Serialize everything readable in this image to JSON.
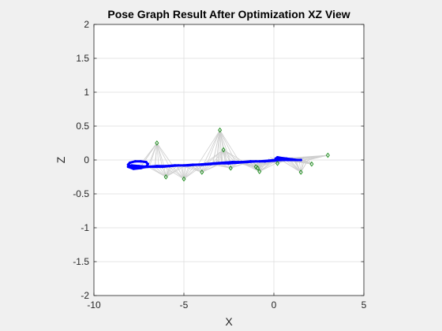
{
  "chart_data": {
    "type": "scatter",
    "title": "Pose Graph Result After Optimization XZ View",
    "xlabel": "X",
    "ylabel": "Z",
    "xlim": [
      -10,
      5
    ],
    "ylim": [
      -2,
      2
    ],
    "xticks": [
      -10,
      -5,
      0,
      5
    ],
    "yticks": [
      -2,
      -1.5,
      -1,
      -0.5,
      0,
      0.5,
      1,
      1.5,
      2
    ],
    "xtick_labels": [
      "-10",
      "-5",
      "0",
      "5"
    ],
    "ytick_labels": [
      "-2",
      "-1.5",
      "-1",
      "-0.5",
      "0",
      "0.5",
      "1",
      "1.5",
      "2"
    ],
    "grid": true,
    "colors": {
      "trajectory": "#0000ff",
      "landmark": "#1a8c1a",
      "edge": "#cfcfcf",
      "axes_bg": "#ffffff",
      "figure_bg": "#f0f0f0"
    },
    "series": [
      {
        "kind": "trajectory",
        "x": [
          1.5,
          1.3,
          1.0,
          0.7,
          0.4,
          0.2,
          0.1,
          0.3,
          0.1,
          -0.3,
          -0.8,
          -1.3,
          -1.8,
          -2.3,
          -2.8,
          -3.3,
          -3.8,
          -4.3,
          -4.8,
          -5.3,
          -5.8,
          -6.2,
          -6.6,
          -7.0,
          -7.3,
          -7.6,
          -7.9,
          -8.1,
          -8.0,
          -7.7,
          -7.4,
          -7.1,
          -7.0,
          -7.1,
          -7.4,
          -7.8,
          -8.1,
          -7.9,
          -7.5,
          -7.0,
          -6.5,
          -6.0,
          -5.5,
          -5.0,
          -4.5,
          -4.0,
          -3.5,
          -3.0,
          -2.5,
          -2.0,
          -1.5,
          -1.0,
          -0.5,
          0.0,
          0.4,
          0.8,
          1.2,
          1.5
        ],
        "y": [
          0.0,
          0.0,
          0.01,
          0.02,
          0.03,
          0.04,
          0.02,
          0.03,
          0.0,
          -0.01,
          -0.02,
          -0.02,
          -0.03,
          -0.03,
          -0.04,
          -0.05,
          -0.06,
          -0.07,
          -0.08,
          -0.08,
          -0.09,
          -0.1,
          -0.1,
          -0.1,
          -0.11,
          -0.12,
          -0.1,
          -0.07,
          -0.04,
          -0.02,
          -0.02,
          -0.03,
          -0.06,
          -0.1,
          -0.12,
          -0.13,
          -0.1,
          -0.08,
          -0.09,
          -0.1,
          -0.09,
          -0.09,
          -0.08,
          -0.08,
          -0.07,
          -0.07,
          -0.06,
          -0.05,
          -0.05,
          -0.04,
          -0.03,
          -0.02,
          -0.02,
          -0.01,
          0.0,
          0.0,
          0.0,
          0.0
        ]
      },
      {
        "kind": "landmarks",
        "x": [
          -6.5,
          -6.0,
          -5.0,
          -4.0,
          -3.0,
          -2.8,
          -2.4,
          -1.0,
          -0.8,
          -0.9,
          0.2,
          1.5,
          2.1,
          3.0
        ],
        "y": [
          0.25,
          -0.25,
          -0.28,
          -0.18,
          0.44,
          0.15,
          -0.12,
          -0.1,
          -0.17,
          -0.12,
          -0.05,
          -0.18,
          -0.06,
          0.07
        ]
      }
    ]
  }
}
